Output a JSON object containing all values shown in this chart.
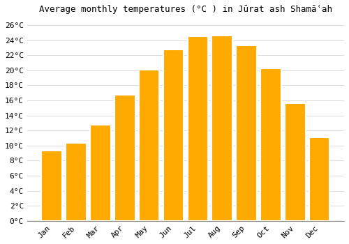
{
  "title": "Average monthly temperatures (°C ) in Jūrat ash Shamāʿah",
  "months": [
    "Jan",
    "Feb",
    "Mar",
    "Apr",
    "May",
    "Jun",
    "Jul",
    "Aug",
    "Sep",
    "Oct",
    "Nov",
    "Dec"
  ],
  "values": [
    9.3,
    10.4,
    12.8,
    16.7,
    20.1,
    22.8,
    24.5,
    24.6,
    23.3,
    20.3,
    15.6,
    11.1
  ],
  "bar_color": "#FFAA00",
  "bar_edge_color": "#FFFFFF",
  "background_color": "#FFFFFF",
  "grid_color": "#DDDDDD",
  "ylim": [
    0,
    27
  ],
  "yticks": [
    0,
    2,
    4,
    6,
    8,
    10,
    12,
    14,
    16,
    18,
    20,
    22,
    24,
    26
  ],
  "title_fontsize": 9,
  "tick_fontsize": 8
}
